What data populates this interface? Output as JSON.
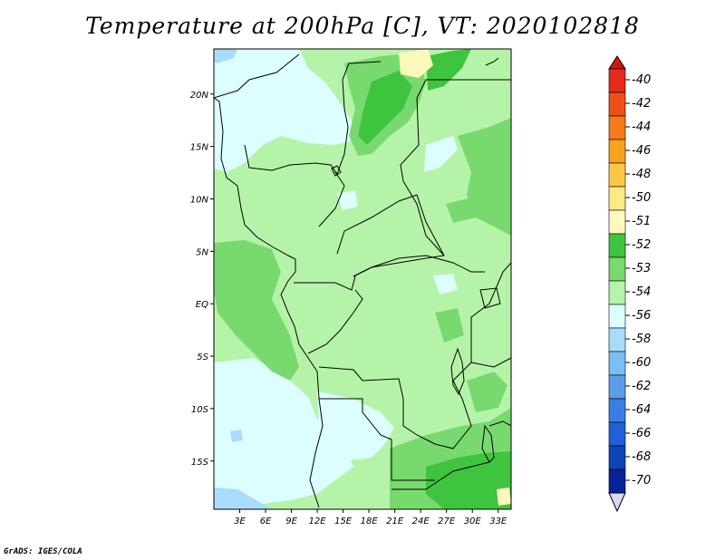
{
  "title": "Temperature at 200hPa [C], VT: 2020102818",
  "credit": "GrADS: IGES/COLA",
  "map": {
    "lat_ticks": [
      {
        "label": "20N",
        "value": 20
      },
      {
        "label": "15N",
        "value": 15
      },
      {
        "label": "10N",
        "value": 10
      },
      {
        "label": "5N",
        "value": 5
      },
      {
        "label": "EQ",
        "value": 0
      },
      {
        "label": "5S",
        "value": -5
      },
      {
        "label": "10S",
        "value": -10
      },
      {
        "label": "15S",
        "value": -15
      }
    ],
    "lon_ticks": [
      {
        "label": "3E",
        "value": 3
      },
      {
        "label": "6E",
        "value": 6
      },
      {
        "label": "9E",
        "value": 9
      },
      {
        "label": "12E",
        "value": 12
      },
      {
        "label": "15E",
        "value": 15
      },
      {
        "label": "18E",
        "value": 18
      },
      {
        "label": "21E",
        "value": 21
      },
      {
        "label": "24E",
        "value": 24
      },
      {
        "label": "27E",
        "value": 27
      },
      {
        "label": "30E",
        "value": 30
      },
      {
        "label": "33E",
        "value": 33
      }
    ]
  },
  "colorbar": {
    "levels": [
      {
        "label": "-40",
        "color": "#e42a1c"
      },
      {
        "label": "-42",
        "color": "#f04f18"
      },
      {
        "label": "-44",
        "color": "#f47a1a"
      },
      {
        "label": "-46",
        "color": "#f8a21e"
      },
      {
        "label": "-48",
        "color": "#fbc846"
      },
      {
        "label": "-50",
        "color": "#fde888"
      },
      {
        "label": "-51",
        "color": "#fff8bd"
      },
      {
        "label": "-52",
        "color": "#3fc43f"
      },
      {
        "label": "-53",
        "color": "#78da6e"
      },
      {
        "label": "-54",
        "color": "#b5f4a8"
      },
      {
        "label": "-56",
        "color": "#dcfefe"
      },
      {
        "label": "-58",
        "color": "#a9dcfb"
      },
      {
        "label": "-60",
        "color": "#7cbdf4"
      },
      {
        "label": "-62",
        "color": "#5b9ceb"
      },
      {
        "label": "-64",
        "color": "#3a7ee2"
      },
      {
        "label": "-66",
        "color": "#1f61d6"
      },
      {
        "label": "-68",
        "color": "#0d44b8"
      },
      {
        "label": "-70",
        "color": "#08229a"
      }
    ],
    "top_arrow_color": "#d4140f",
    "bottom_arrow_color": "#d8d8ee"
  },
  "field_colors": {
    "background": "#b5f4a8",
    "cold": "#dcfefe",
    "colder": "#a9dcfb",
    "warm1": "#78da6e",
    "warm2": "#3fc43f",
    "warm3": "#fff8bd",
    "border": "#000000"
  }
}
